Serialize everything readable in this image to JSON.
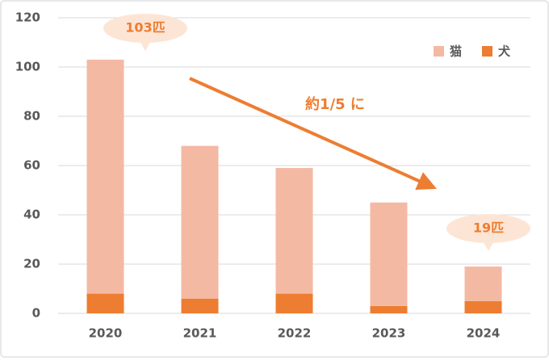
{
  "chart_data": {
    "type": "bar",
    "stacked": true,
    "categories": [
      "2020",
      "2021",
      "2022",
      "2023",
      "2024"
    ],
    "series": [
      {
        "name": "猫",
        "color": "#f4b9a3",
        "values": [
          95,
          62,
          51,
          42,
          14
        ]
      },
      {
        "name": "犬",
        "color": "#ed7d31",
        "values": [
          8,
          6,
          8,
          3,
          5
        ]
      }
    ],
    "ylim": [
      0,
      120
    ],
    "yticks": [
      0,
      20,
      40,
      60,
      80,
      100,
      120
    ],
    "grid": true,
    "legend": "top-right",
    "annotations": [
      {
        "text": "103匹"
      },
      {
        "text": "19匹"
      },
      {
        "text": "約1/5 に"
      }
    ]
  }
}
